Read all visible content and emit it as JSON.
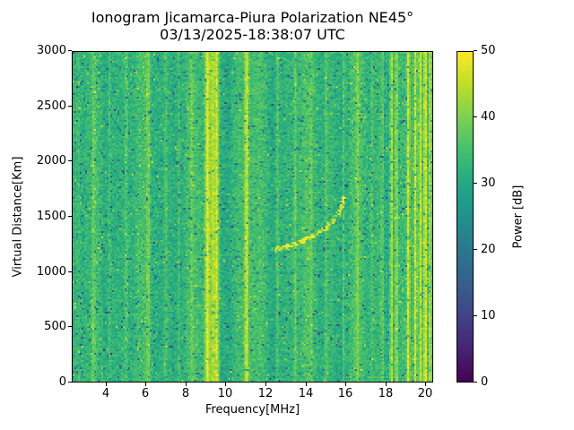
{
  "chart_data": {
    "type": "heatmap",
    "title": "Ionogram Jicamarca-Piura Polarization NE45°",
    "subtitle": "03/13/2025-18:38:07 UTC",
    "xlabel": "Frequency[MHz]",
    "ylabel": "Virtual Distance[Km]",
    "x_range": [
      2.3,
      20.4
    ],
    "y_range": [
      0,
      3000
    ],
    "xticks": [
      4,
      6,
      8,
      10,
      12,
      14,
      16,
      18,
      20
    ],
    "yticks": [
      0,
      500,
      1000,
      1500,
      2000,
      2500,
      3000
    ],
    "grid": false,
    "colorbar": {
      "label": "Power [dB]",
      "range": [
        0,
        50
      ],
      "ticks": [
        0,
        10,
        20,
        30,
        40,
        50
      ],
      "colormap": "viridis",
      "colormap_stops": [
        {
          "t": 0.0,
          "c": "#440154"
        },
        {
          "t": 0.1,
          "c": "#482475"
        },
        {
          "t": 0.2,
          "c": "#414487"
        },
        {
          "t": 0.3,
          "c": "#355f8d"
        },
        {
          "t": 0.4,
          "c": "#2a788e"
        },
        {
          "t": 0.5,
          "c": "#21918c"
        },
        {
          "t": 0.6,
          "c": "#22a884"
        },
        {
          "t": 0.7,
          "c": "#44bf70"
        },
        {
          "t": 0.8,
          "c": "#7ad151"
        },
        {
          "t": 0.9,
          "c": "#bddf26"
        },
        {
          "t": 1.0,
          "c": "#fde725"
        }
      ]
    },
    "noise": {
      "mean_db": 32.5,
      "spread_db": 5,
      "seed": 1234
    },
    "rfi_stripes": [
      {
        "freq": 3.35,
        "width": 0.08,
        "boost_db": 5
      },
      {
        "freq": 4.15,
        "width": 0.07,
        "boost_db": 4
      },
      {
        "freq": 5.0,
        "width": 0.07,
        "boost_db": 4
      },
      {
        "freq": 6.1,
        "width": 0.08,
        "boost_db": 5
      },
      {
        "freq": 7.0,
        "width": 0.07,
        "boost_db": 4
      },
      {
        "freq": 7.65,
        "width": 0.07,
        "boost_db": 5
      },
      {
        "freq": 8.3,
        "width": 0.07,
        "boost_db": 4
      },
      {
        "freq": 9.1,
        "width": 0.12,
        "boost_db": 15
      },
      {
        "freq": 9.35,
        "width": 0.09,
        "boost_db": 11
      },
      {
        "freq": 9.55,
        "width": 0.11,
        "boost_db": 15
      },
      {
        "freq": 11.05,
        "width": 0.1,
        "boost_db": 13
      },
      {
        "freq": 12.6,
        "width": 0.08,
        "boost_db": 6
      },
      {
        "freq": 13.5,
        "width": 0.08,
        "boost_db": 6
      },
      {
        "freq": 14.3,
        "width": 0.07,
        "boost_db": 4
      },
      {
        "freq": 15.05,
        "width": 0.08,
        "boost_db": 6
      },
      {
        "freq": 15.95,
        "width": 0.07,
        "boost_db": 5
      },
      {
        "freq": 16.65,
        "width": 0.08,
        "boost_db": 6
      },
      {
        "freq": 17.35,
        "width": 0.07,
        "boost_db": 4
      },
      {
        "freq": 17.9,
        "width": 0.08,
        "boost_db": 5
      },
      {
        "freq": 18.35,
        "width": 0.08,
        "boost_db": 13
      },
      {
        "freq": 18.6,
        "width": 0.07,
        "boost_db": 11
      },
      {
        "freq": 19.2,
        "width": 0.08,
        "boost_db": 13
      },
      {
        "freq": 19.55,
        "width": 0.08,
        "boost_db": 12
      },
      {
        "freq": 19.8,
        "width": 0.07,
        "boost_db": 11
      },
      {
        "freq": 20.05,
        "width": 0.08,
        "boost_db": 14
      },
      {
        "freq": 20.3,
        "width": 0.07,
        "boost_db": 12
      }
    ],
    "echo_trace": {
      "boost_db": 9,
      "points": [
        [
          12.35,
          1205
        ],
        [
          12.7,
          1220
        ],
        [
          13.1,
          1240
        ],
        [
          13.5,
          1265
        ],
        [
          13.9,
          1295
        ],
        [
          14.3,
          1330
        ],
        [
          14.7,
          1370
        ],
        [
          15.1,
          1420
        ],
        [
          15.4,
          1480
        ],
        [
          15.65,
          1550
        ],
        [
          15.85,
          1630
        ],
        [
          15.95,
          1700
        ]
      ]
    }
  }
}
